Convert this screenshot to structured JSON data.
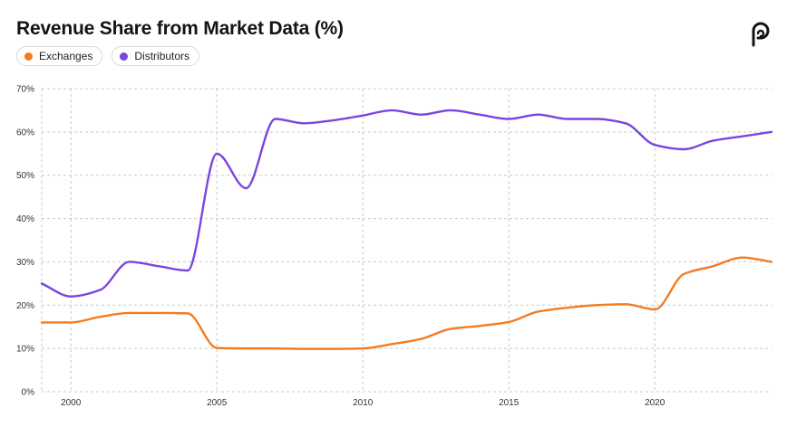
{
  "header": {
    "title": "Revenue Share from Market Data (%)",
    "logo_icon": "brand-logo-icon"
  },
  "legend": [
    {
      "label": "Exchanges",
      "color": "#f47b20"
    },
    {
      "label": "Distributors",
      "color": "#7b45e0"
    }
  ],
  "chart_data": {
    "type": "line",
    "title": "Revenue Share from Market Data (%)",
    "xlabel": "",
    "ylabel": "",
    "xlim": [
      1999,
      2024
    ],
    "ylim": [
      0,
      70
    ],
    "grid": true,
    "legend_position": "top-left",
    "x_ticks": [
      2000,
      2005,
      2010,
      2015,
      2020
    ],
    "y_ticks": [
      0,
      10,
      20,
      30,
      40,
      50,
      60,
      70
    ],
    "y_tick_labels": [
      "0%",
      "10%",
      "20%",
      "30%",
      "40%",
      "50%",
      "60%",
      "70%"
    ],
    "series": [
      {
        "name": "Exchanges",
        "color": "#f47b20",
        "points": [
          [
            1999,
            16
          ],
          [
            2000,
            16
          ],
          [
            2001,
            17.3
          ],
          [
            2002,
            18.2
          ],
          [
            2003,
            18.2
          ],
          [
            2004,
            18.1
          ],
          [
            2005,
            10.1
          ],
          [
            2006,
            10
          ],
          [
            2007,
            10
          ],
          [
            2008,
            9.9
          ],
          [
            2009,
            9.9
          ],
          [
            2010,
            10
          ],
          [
            2011,
            11
          ],
          [
            2012,
            12.2
          ],
          [
            2013,
            14.5
          ],
          [
            2014,
            15.2
          ],
          [
            2015,
            16.1
          ],
          [
            2016,
            18.5
          ],
          [
            2017,
            19.4
          ],
          [
            2018,
            20
          ],
          [
            2019,
            20.2
          ],
          [
            2020,
            19
          ],
          [
            2021,
            27.2
          ],
          [
            2022,
            29
          ],
          [
            2023,
            31
          ],
          [
            2024,
            30
          ]
        ]
      },
      {
        "name": "Distributors",
        "color": "#7b45e0",
        "points": [
          [
            1999,
            25
          ],
          [
            2000,
            22
          ],
          [
            2001,
            23.5
          ],
          [
            2002,
            30
          ],
          [
            2003,
            29
          ],
          [
            2004,
            28
          ],
          [
            2005,
            55
          ],
          [
            2006,
            47
          ],
          [
            2007,
            63
          ],
          [
            2008,
            62
          ],
          [
            2009,
            62.7
          ],
          [
            2010,
            63.8
          ],
          [
            2011,
            65
          ],
          [
            2012,
            64
          ],
          [
            2013,
            65
          ],
          [
            2014,
            64
          ],
          [
            2015,
            63
          ],
          [
            2016,
            64
          ],
          [
            2017,
            63
          ],
          [
            2018,
            63
          ],
          [
            2019,
            62
          ],
          [
            2020,
            57
          ],
          [
            2021,
            56
          ],
          [
            2022,
            58
          ],
          [
            2023,
            59
          ],
          [
            2024,
            60
          ]
        ]
      }
    ]
  }
}
